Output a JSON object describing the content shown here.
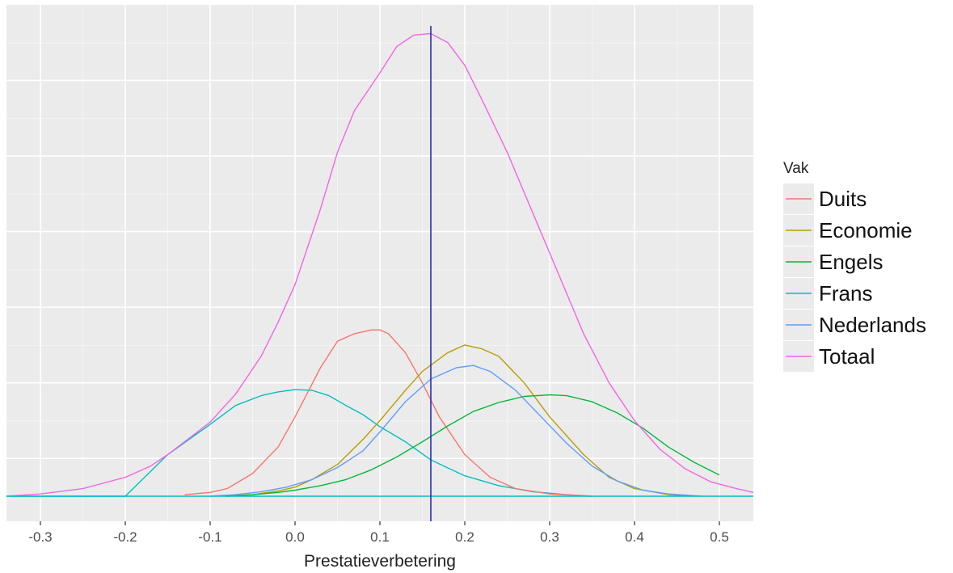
{
  "chart_data": {
    "type": "line",
    "title": "",
    "xlabel": "Prestatieverbetering",
    "ylabel": "",
    "xlim": [
      -0.34,
      0.54
    ],
    "x_ticks": [
      -0.3,
      -0.2,
      -0.1,
      0.0,
      0.1,
      0.2,
      0.3,
      0.4,
      0.5
    ],
    "x_tick_labels": [
      "-0.3",
      "-0.2",
      "-0.1",
      "0.0",
      "0.1",
      "0.2",
      "0.3",
      "0.4",
      "0.5"
    ],
    "y_ticks_shown": false,
    "ylim": [
      0,
      6.2
    ],
    "grid": true,
    "background": "#ebebeb",
    "vline": {
      "x": 0.16,
      "color": "#2b2bb8"
    },
    "legend": {
      "title": "Vak",
      "placement": "right",
      "entries": [
        "Duits",
        "Economie",
        "Engels",
        "Frans",
        "Nederlands",
        "Totaal"
      ]
    },
    "series": [
      {
        "name": "Duits",
        "color": "#f8766d",
        "x": [
          -0.13,
          -0.1,
          -0.08,
          -0.05,
          -0.02,
          0.0,
          0.03,
          0.05,
          0.07,
          0.09,
          0.1,
          0.11,
          0.13,
          0.15,
          0.17,
          0.2,
          0.23,
          0.26,
          0.3,
          0.35
        ],
        "y": [
          0.02,
          0.05,
          0.1,
          0.3,
          0.65,
          1.05,
          1.7,
          2.05,
          2.15,
          2.2,
          2.2,
          2.15,
          1.9,
          1.5,
          1.05,
          0.55,
          0.25,
          0.1,
          0.03,
          0.0
        ]
      },
      {
        "name": "Economie",
        "color": "#b79f00",
        "x": [
          -0.08,
          -0.05,
          -0.02,
          0.0,
          0.02,
          0.05,
          0.08,
          0.1,
          0.13,
          0.15,
          0.18,
          0.2,
          0.22,
          0.24,
          0.27,
          0.3,
          0.34,
          0.37,
          0.4,
          0.44,
          0.47
        ],
        "y": [
          0.0,
          0.02,
          0.07,
          0.12,
          0.22,
          0.42,
          0.75,
          1.0,
          1.4,
          1.65,
          1.9,
          2.0,
          1.95,
          1.85,
          1.5,
          1.05,
          0.55,
          0.25,
          0.1,
          0.02,
          0.0
        ]
      },
      {
        "name": "Engels",
        "color": "#00ba38",
        "x": [
          -0.08,
          -0.05,
          -0.02,
          0.0,
          0.03,
          0.06,
          0.09,
          0.12,
          0.15,
          0.18,
          0.21,
          0.24,
          0.27,
          0.3,
          0.32,
          0.35,
          0.38,
          0.41,
          0.44,
          0.47,
          0.5
        ],
        "y": [
          0.0,
          0.02,
          0.05,
          0.08,
          0.14,
          0.22,
          0.35,
          0.52,
          0.72,
          0.93,
          1.12,
          1.24,
          1.32,
          1.34,
          1.33,
          1.25,
          1.1,
          0.9,
          0.65,
          0.45,
          0.28
        ]
      },
      {
        "name": "Frans",
        "color": "#00bfc4",
        "x": [
          -0.34,
          -0.3,
          -0.2,
          -0.15,
          -0.1,
          -0.07,
          -0.04,
          -0.02,
          0.0,
          0.02,
          0.04,
          0.06,
          0.08,
          0.1,
          0.13,
          0.16,
          0.2,
          0.24,
          0.28,
          0.32,
          0.35
        ],
        "y": [
          0.0,
          0.0,
          0.0,
          0.55,
          0.95,
          1.2,
          1.33,
          1.38,
          1.41,
          1.4,
          1.33,
          1.2,
          1.08,
          0.92,
          0.72,
          0.48,
          0.27,
          0.14,
          0.06,
          0.02,
          0.0
        ]
      },
      {
        "name": "Nederlands",
        "color": "#619cff",
        "x": [
          -0.1,
          -0.07,
          -0.04,
          -0.01,
          0.02,
          0.05,
          0.08,
          0.1,
          0.13,
          0.16,
          0.19,
          0.21,
          0.23,
          0.26,
          0.29,
          0.32,
          0.35,
          0.38,
          0.41,
          0.44,
          0.48
        ],
        "y": [
          0.0,
          0.02,
          0.06,
          0.12,
          0.22,
          0.38,
          0.6,
          0.85,
          1.25,
          1.55,
          1.7,
          1.73,
          1.65,
          1.4,
          1.05,
          0.7,
          0.4,
          0.2,
          0.08,
          0.03,
          0.0
        ]
      },
      {
        "name": "Totaal",
        "color": "#f564e3",
        "x": [
          -0.34,
          -0.3,
          -0.25,
          -0.2,
          -0.17,
          -0.15,
          -0.1,
          -0.07,
          -0.04,
          -0.02,
          0.0,
          0.03,
          0.05,
          0.07,
          0.1,
          0.12,
          0.14,
          0.16,
          0.18,
          0.2,
          0.22,
          0.25,
          0.28,
          0.31,
          0.34,
          0.37,
          0.4,
          0.43,
          0.46,
          0.49,
          0.52,
          0.54
        ],
        "y": [
          0.0,
          0.03,
          0.1,
          0.25,
          0.4,
          0.55,
          0.98,
          1.35,
          1.85,
          2.3,
          2.8,
          3.8,
          4.55,
          5.1,
          5.6,
          5.95,
          6.1,
          6.12,
          6.0,
          5.7,
          5.25,
          4.55,
          3.75,
          2.95,
          2.15,
          1.5,
          1.0,
          0.62,
          0.36,
          0.19,
          0.1,
          0.05
        ]
      }
    ]
  }
}
